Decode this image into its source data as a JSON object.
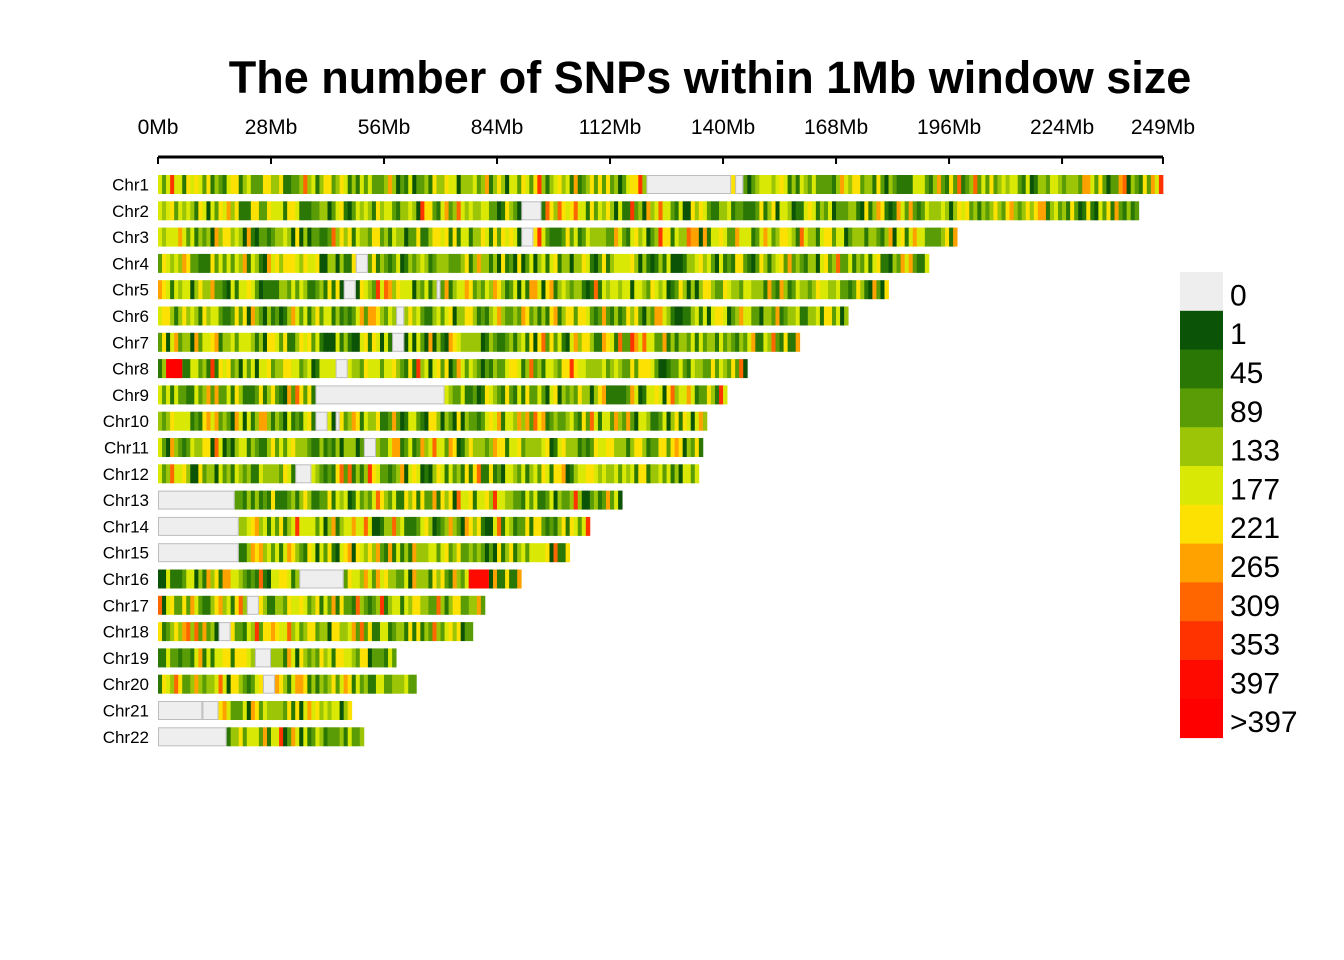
{
  "chart_data": {
    "type": "heatmap",
    "title": "The number of SNPs within 1Mb window size",
    "x_axis": {
      "unit": "Mb",
      "range_mb": [
        0,
        249
      ],
      "tick_values_mb": [
        0,
        28,
        56,
        84,
        112,
        140,
        168,
        196,
        224,
        249
      ],
      "tick_labels": [
        "0Mb",
        "28Mb",
        "56Mb",
        "84Mb",
        "112Mb",
        "140Mb",
        "168Mb",
        "196Mb",
        "224Mb",
        "249Mb"
      ]
    },
    "chromosomes": [
      {
        "name": "Chr1",
        "length_mb": 249,
        "gaps_mb": [
          [
            121,
            142
          ],
          [
            143,
            145
          ]
        ]
      },
      {
        "name": "Chr2",
        "length_mb": 243,
        "gaps_mb": [
          [
            90,
            95
          ]
        ]
      },
      {
        "name": "Chr3",
        "length_mb": 198,
        "gaps_mb": [
          [
            90,
            93
          ]
        ]
      },
      {
        "name": "Chr4",
        "length_mb": 191,
        "gaps_mb": [
          [
            49,
            52
          ]
        ]
      },
      {
        "name": "Chr5",
        "length_mb": 181,
        "gaps_mb": [
          [
            46,
            49
          ],
          [
            69,
            70
          ]
        ]
      },
      {
        "name": "Chr6",
        "length_mb": 171,
        "gaps_mb": [
          [
            59,
            61
          ]
        ]
      },
      {
        "name": "Chr7",
        "length_mb": 159,
        "gaps_mb": [
          [
            58,
            61
          ]
        ]
      },
      {
        "name": "Chr8",
        "length_mb": 146,
        "gaps_mb": [
          [
            44,
            47
          ]
        ]
      },
      {
        "name": "Chr9",
        "length_mb": 141,
        "gaps_mb": [
          [
            39,
            71
          ]
        ]
      },
      {
        "name": "Chr10",
        "length_mb": 136,
        "gaps_mb": [
          [
            39,
            42
          ],
          [
            44,
            45
          ]
        ]
      },
      {
        "name": "Chr11",
        "length_mb": 135,
        "gaps_mb": [
          [
            51,
            54
          ]
        ]
      },
      {
        "name": "Chr12",
        "length_mb": 134,
        "gaps_mb": [
          [
            34,
            38
          ]
        ]
      },
      {
        "name": "Chr13",
        "length_mb": 115,
        "gaps_mb": [
          [
            0,
            19
          ]
        ]
      },
      {
        "name": "Chr14",
        "length_mb": 107,
        "gaps_mb": [
          [
            0,
            20
          ]
        ]
      },
      {
        "name": "Chr15",
        "length_mb": 102,
        "gaps_mb": [
          [
            0,
            20
          ]
        ]
      },
      {
        "name": "Chr16",
        "length_mb": 90,
        "gaps_mb": [
          [
            35,
            46
          ]
        ]
      },
      {
        "name": "Chr17",
        "length_mb": 81,
        "gaps_mb": [
          [
            22,
            25
          ]
        ]
      },
      {
        "name": "Chr18",
        "length_mb": 78,
        "gaps_mb": [
          [
            15,
            18
          ]
        ]
      },
      {
        "name": "Chr19",
        "length_mb": 59,
        "gaps_mb": [
          [
            24,
            28
          ]
        ]
      },
      {
        "name": "Chr20",
        "length_mb": 64,
        "gaps_mb": [
          [
            26,
            29
          ]
        ]
      },
      {
        "name": "Chr21",
        "length_mb": 48,
        "gaps_mb": [
          [
            0,
            11
          ],
          [
            11,
            15
          ]
        ]
      },
      {
        "name": "Chr22",
        "length_mb": 51,
        "gaps_mb": [
          [
            0,
            17
          ]
        ]
      }
    ],
    "hotspots_mb": [
      {
        "chrom": "Chr8",
        "range": [
          2,
          6
        ],
        "level": ">397"
      },
      {
        "chrom": "Chr16",
        "range": [
          77,
          82
        ],
        "level": "397"
      }
    ],
    "legend": {
      "placement": "right",
      "bins": [
        {
          "label": "0",
          "color": "#eeeeee"
        },
        {
          "label": "1",
          "color": "#0b5306"
        },
        {
          "label": "45",
          "color": "#2a7706"
        },
        {
          "label": "89",
          "color": "#5a9c06"
        },
        {
          "label": "133",
          "color": "#9cc507"
        },
        {
          "label": "177",
          "color": "#dae805"
        },
        {
          "label": "221",
          "color": "#fde103"
        },
        {
          "label": "265",
          "color": "#ffa200"
        },
        {
          "label": "309",
          "color": "#ff6600"
        },
        {
          "label": "353",
          "color": "#ff3300"
        },
        {
          "label": "397",
          "color": "#ff0a00"
        },
        {
          "label": ">397",
          "color": "#ff0000"
        }
      ]
    }
  }
}
